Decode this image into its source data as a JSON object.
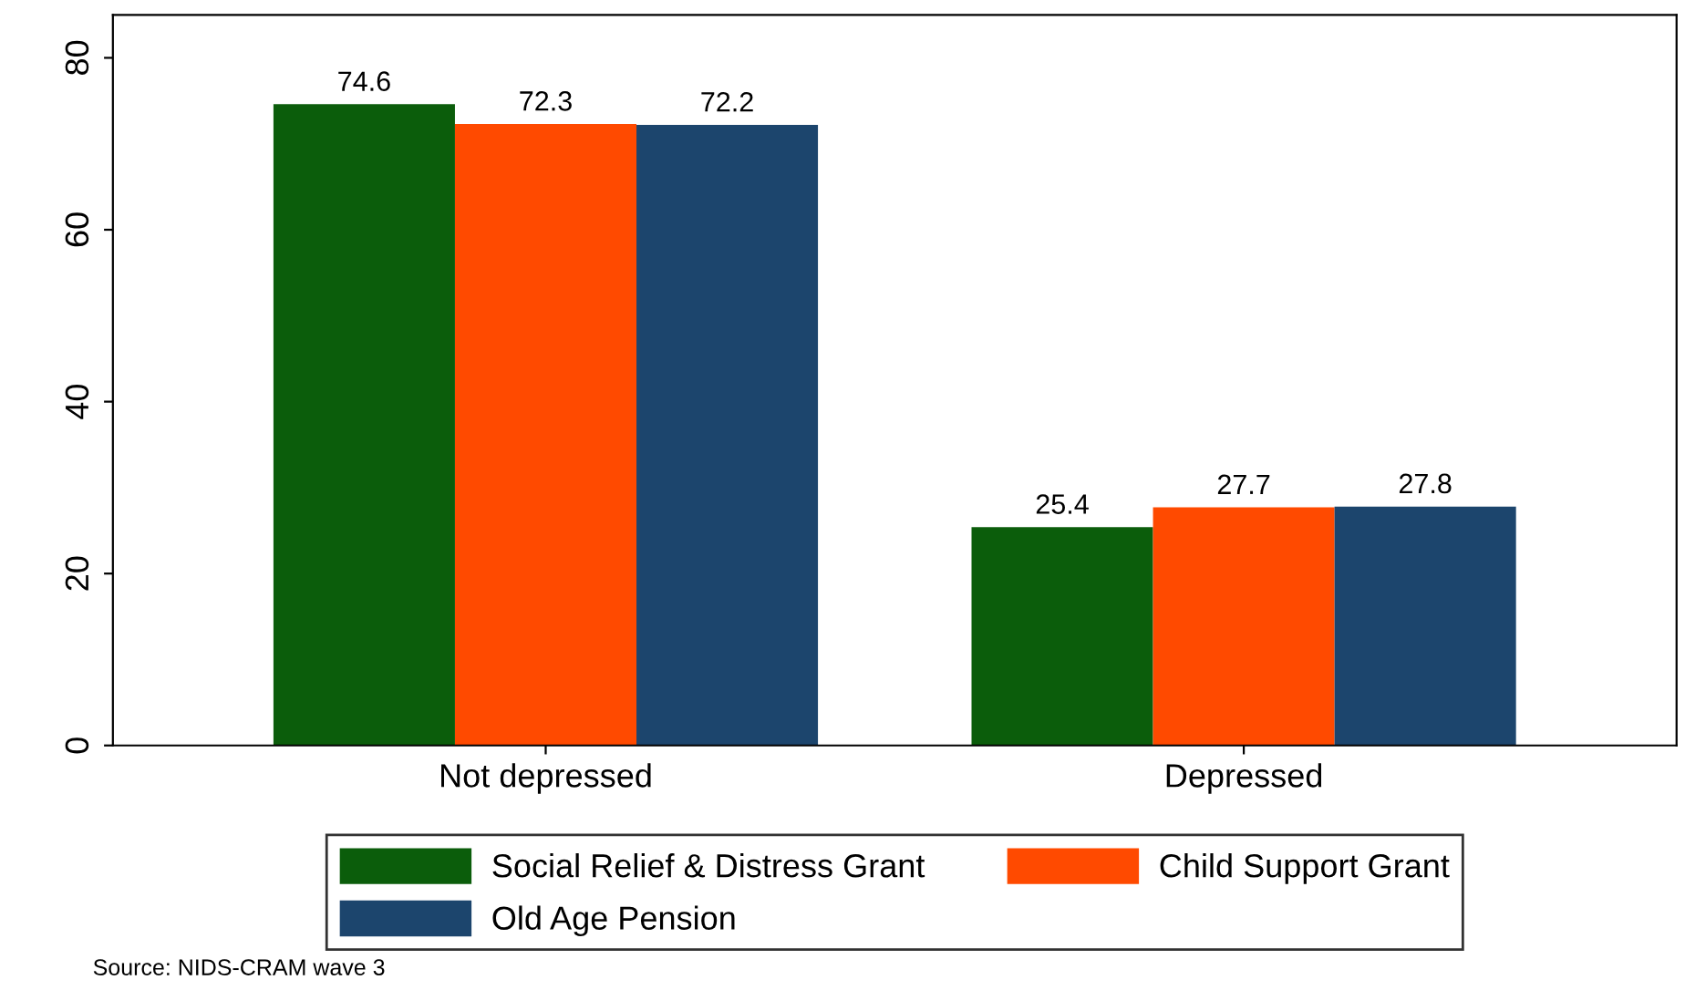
{
  "chart_data": {
    "type": "bar",
    "categories": [
      "Not depressed",
      "Depressed"
    ],
    "series": [
      {
        "name": "Social Relief & Distress Grant",
        "color": "#0b5d0b",
        "values": [
          74.6,
          25.4
        ]
      },
      {
        "name": "Child Support Grant",
        "color": "#ff4a00",
        "values": [
          72.3,
          27.7
        ]
      },
      {
        "name": "Old Age Pension",
        "color": "#1c456d",
        "values": [
          72.2,
          27.8
        ]
      }
    ],
    "ylim": [
      0,
      85
    ],
    "yticks": [
      0,
      20,
      40,
      60,
      80
    ],
    "data_labels": true,
    "grid": false,
    "legend": "bottom",
    "annotations": [
      "Source: NIDS-CRAM wave 3"
    ]
  }
}
